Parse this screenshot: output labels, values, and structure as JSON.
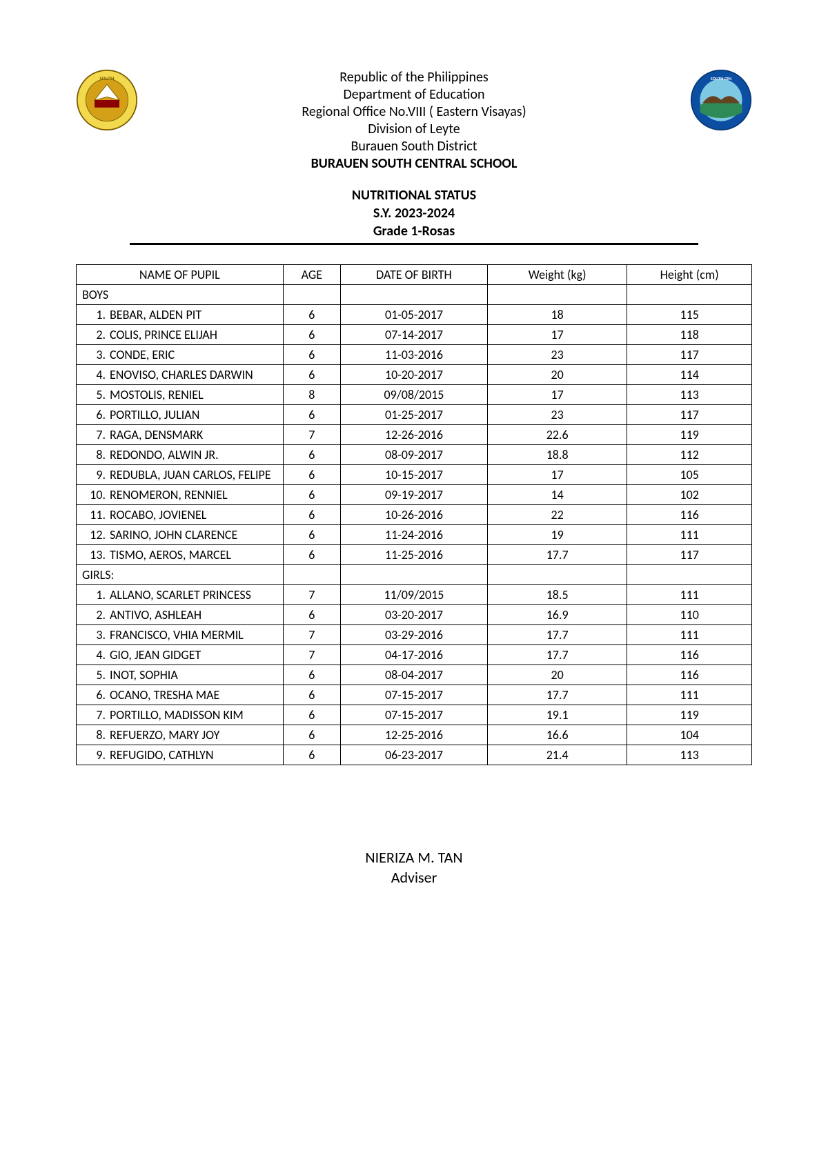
{
  "header": {
    "line1": "Republic of the Philippines",
    "line2": "Department of Education",
    "line3": "Regional Office No.VIII ( Eastern  Visayas)",
    "line4": "Division of Leyte",
    "line5": "Burauen South District",
    "school": "BURAUEN SOUTH CENTRAL SCHOOL"
  },
  "title": {
    "line1": "NUTRITIONAL STATUS",
    "line2": "S.Y. 2023-2024",
    "line3": "Grade 1-Rosas"
  },
  "columns": {
    "name": "NAME OF PUPIL",
    "age": "AGE",
    "dob": "DATE OF BIRTH",
    "weight": "Weight (kg)",
    "height": "Height (cm)"
  },
  "sections": {
    "boys": "BOYS",
    "girls": "GIRLS:"
  },
  "boys": [
    {
      "num": "1.",
      "name": "BEBAR, ALDEN PIT",
      "age": "6",
      "dob": "01-05-2017",
      "weight": "18",
      "height": "115"
    },
    {
      "num": "2.",
      "name": "COLIS, PRINCE ELIJAH",
      "age": "6",
      "dob": "07-14-2017",
      "weight": "17",
      "height": "118"
    },
    {
      "num": "3.",
      "name": "CONDE, ERIC",
      "age": "6",
      "dob": "11-03-2016",
      "weight": "23",
      "height": "117"
    },
    {
      "num": "4.",
      "name": "ENOVISO, CHARLES DARWIN",
      "age": "6",
      "dob": "10-20-2017",
      "weight": "20",
      "height": "114"
    },
    {
      "num": "5.",
      "name": "MOSTOLIS, RENIEL",
      "age": "8",
      "dob": "09/08/2015",
      "weight": "17",
      "height": "113"
    },
    {
      "num": "6.",
      "name": "PORTILLO, JULIAN",
      "age": "6",
      "dob": "01-25-2017",
      "weight": "23",
      "height": "117"
    },
    {
      "num": "7.",
      "name": "RAGA, DENSMARK",
      "age": "7",
      "dob": "12-26-2016",
      "weight": "22.6",
      "height": "119"
    },
    {
      "num": "8.",
      "name": "REDONDO, ALWIN JR.",
      "age": "6",
      "dob": "08-09-2017",
      "weight": "18.8",
      "height": "112"
    },
    {
      "num": "9.",
      "name": "REDUBLA, JUAN CARLOS, FELIPE",
      "age": "6",
      "dob": "10-15-2017",
      "weight": "17",
      "height": "105"
    },
    {
      "num": "10.",
      "name": "RENOMERON, RENNIEL",
      "age": "6",
      "dob": "09-19-2017",
      "weight": "14",
      "height": "102"
    },
    {
      "num": "11.",
      "name": "ROCABO, JOVIENEL",
      "age": "6",
      "dob": "10-26-2016",
      "weight": "22",
      "height": "116"
    },
    {
      "num": "12.",
      "name": "SARINO, JOHN CLARENCE",
      "age": "6",
      "dob": "11-24-2016",
      "weight": "19",
      "height": "111"
    },
    {
      "num": "13.",
      "name": "TISMO, AEROS, MARCEL",
      "age": "6",
      "dob": "11-25-2016",
      "weight": "17.7",
      "height": "117"
    }
  ],
  "girls": [
    {
      "num": "1.",
      "name": "ALLANO, SCARLET PRINCESS",
      "age": "7",
      "dob": "11/09/2015",
      "weight": "18.5",
      "height": "111"
    },
    {
      "num": "2.",
      "name": "ANTIVO, ASHLEAH",
      "age": "6",
      "dob": "03-20-2017",
      "weight": "16.9",
      "height": "110"
    },
    {
      "num": "3.",
      "name": "FRANCISCO, VHIA MERMIL",
      "age": "7",
      "dob": "03-29-2016",
      "weight": "17.7",
      "height": "111"
    },
    {
      "num": "4.",
      "name": "GIO, JEAN GIDGET",
      "age": "7",
      "dob": "04-17-2016",
      "weight": "17.7",
      "height": "116"
    },
    {
      "num": "5.",
      "name": "INOT, SOPHIA",
      "age": "6",
      "dob": "08-04-2017",
      "weight": "20",
      "height": "116"
    },
    {
      "num": "6.",
      "name": "OCANO, TRESHA MAE",
      "age": "6",
      "dob": "07-15-2017",
      "weight": "17.7",
      "height": "111"
    },
    {
      "num": "7.",
      "name": "PORTILLO, MADISSON KIM",
      "age": "6",
      "dob": "07-15-2017",
      "weight": "19.1",
      "height": "119"
    },
    {
      "num": "8.",
      "name": "REFUERZO, MARY JOY",
      "age": "6",
      "dob": "12-25-2016",
      "weight": "16.6",
      "height": "104"
    },
    {
      "num": "9.",
      "name": "REFUGIDO, CATHLYN",
      "age": "6",
      "dob": "06-23-2017",
      "weight": "21.4",
      "height": "113"
    }
  ],
  "footer": {
    "adviser_name": "NIERIZA M. TAN",
    "adviser_label": "Adviser"
  },
  "style": {
    "text_color": "#000000",
    "background_color": "#ffffff",
    "border_color": "#000000",
    "logo_left_outer": "#f2d94e",
    "logo_left_inner": "#d4a017",
    "logo_right_outer": "#0b4ea2",
    "logo_right_sky": "#7ec8e3",
    "logo_right_land": "#2e8b57",
    "header_fontsize": 20,
    "title_fontsize": 20,
    "table_fontsize": 18,
    "footer_fontsize": 22
  }
}
